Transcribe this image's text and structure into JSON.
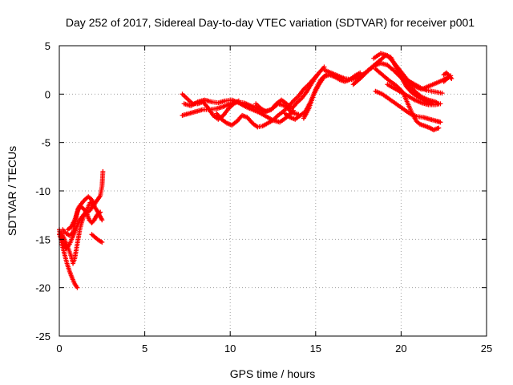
{
  "chart_data": {
    "type": "scatter",
    "title": "Day 252 of 2017, Sidereal Day-to-day VTEC variation (SDTVAR) for receiver p001",
    "xlabel": "GPS time / hours",
    "ylabel": "SDTVAR / TECUs",
    "xlim": [
      0,
      25
    ],
    "ylim": [
      -25,
      5
    ],
    "xticks": [
      0,
      5,
      10,
      15,
      20,
      25
    ],
    "yticks": [
      5,
      0,
      -5,
      -10,
      -15,
      -20,
      -25
    ],
    "xtick_labels": [
      "0",
      "5",
      "10",
      "15",
      "20",
      "25"
    ],
    "ytick_labels": [
      "5",
      "0",
      "-5",
      "-10",
      "-15",
      "-20",
      "-25"
    ],
    "grid": true,
    "marker": "+",
    "series": [
      {
        "name": "SDTVAR",
        "color": "#ff0000",
        "traces": [
          [
            [
              0.0,
              -14.0
            ],
            [
              0.15,
              -15.5
            ],
            [
              0.3,
              -16.5
            ],
            [
              0.45,
              -17.5
            ],
            [
              0.6,
              -18.3
            ],
            [
              0.75,
              -19.0
            ],
            [
              0.9,
              -19.6
            ],
            [
              1.05,
              -20.0
            ]
          ],
          [
            [
              0.0,
              -14.5
            ],
            [
              0.2,
              -15.3
            ],
            [
              0.4,
              -16.0
            ],
            [
              0.6,
              -15.5
            ],
            [
              0.8,
              -14.7
            ],
            [
              1.0,
              -13.8
            ],
            [
              1.2,
              -13.0
            ],
            [
              1.4,
              -12.5
            ],
            [
              1.6,
              -12.3
            ],
            [
              1.8,
              -12.0
            ],
            [
              2.0,
              -11.5
            ],
            [
              2.2,
              -11.0
            ],
            [
              2.4,
              -10.5
            ],
            [
              2.5,
              -9.5
            ],
            [
              2.55,
              -8.0
            ]
          ],
          [
            [
              0.1,
              -14.3
            ],
            [
              0.3,
              -15.0
            ],
            [
              0.5,
              -15.8
            ],
            [
              0.7,
              -16.8
            ],
            [
              0.8,
              -17.5
            ],
            [
              0.9,
              -17.0
            ],
            [
              1.0,
              -16.0
            ],
            [
              1.1,
              -15.0
            ],
            [
              1.2,
              -14.0
            ],
            [
              1.3,
              -13.3
            ],
            [
              1.45,
              -12.5
            ],
            [
              1.6,
              -12.0
            ],
            [
              1.8,
              -11.2
            ],
            [
              2.0,
              -11.5
            ],
            [
              2.2,
              -12.0
            ],
            [
              2.35,
              -12.5
            ],
            [
              2.5,
              -13.0
            ]
          ],
          [
            [
              0.2,
              -14.0
            ],
            [
              0.4,
              -14.4
            ],
            [
              0.6,
              -14.6
            ],
            [
              0.8,
              -14.3
            ],
            [
              0.9,
              -13.5
            ],
            [
              1.0,
              -12.6
            ],
            [
              1.1,
              -11.8
            ],
            [
              1.3,
              -11.3
            ],
            [
              1.5,
              -10.9
            ],
            [
              1.7,
              -10.6
            ],
            [
              1.9,
              -10.9
            ],
            [
              2.05,
              -11.5
            ]
          ],
          [
            [
              0.5,
              -14.0
            ],
            [
              0.7,
              -13.7
            ],
            [
              0.9,
              -13.0
            ],
            [
              1.05,
              -12.2
            ],
            [
              1.2,
              -11.6
            ],
            [
              1.4,
              -11.8
            ],
            [
              1.6,
              -12.3
            ],
            [
              1.75,
              -13.0
            ],
            [
              1.9,
              -13.3
            ],
            [
              2.05,
              -13.0
            ],
            [
              2.2,
              -12.5
            ],
            [
              2.4,
              -12.2
            ]
          ],
          [
            [
              1.9,
              -14.5
            ],
            [
              2.1,
              -14.8
            ],
            [
              2.3,
              -15.1
            ],
            [
              2.5,
              -15.3
            ]
          ],
          [
            [
              7.2,
              0.0
            ],
            [
              7.5,
              -0.5
            ],
            [
              7.8,
              -1.0
            ],
            [
              8.1,
              -1.0
            ],
            [
              8.4,
              -0.8
            ],
            [
              8.7,
              -1.4
            ],
            [
              9.0,
              -2.2
            ],
            [
              9.3,
              -2.6
            ],
            [
              9.6,
              -2.2
            ],
            [
              9.9,
              -1.5
            ],
            [
              10.2,
              -1.0
            ],
            [
              10.5,
              -0.7
            ]
          ],
          [
            [
              7.2,
              -2.2
            ],
            [
              7.6,
              -2.0
            ],
            [
              8.0,
              -1.8
            ],
            [
              8.4,
              -1.6
            ],
            [
              8.8,
              -1.6
            ],
            [
              9.2,
              -1.5
            ],
            [
              9.6,
              -1.3
            ],
            [
              10.0,
              -1.0
            ],
            [
              10.4,
              -0.8
            ],
            [
              10.8,
              -0.9
            ],
            [
              11.2,
              -1.2
            ],
            [
              11.6,
              -1.5
            ],
            [
              12.0,
              -1.8
            ],
            [
              12.4,
              -1.6
            ],
            [
              12.8,
              -1.0
            ],
            [
              13.2,
              -1.2
            ],
            [
              13.6,
              -1.9
            ],
            [
              14.0,
              -2.1
            ]
          ],
          [
            [
              7.3,
              -1.0
            ],
            [
              7.7,
              -1.2
            ],
            [
              8.1,
              -0.8
            ],
            [
              8.5,
              -0.6
            ],
            [
              8.9,
              -0.8
            ],
            [
              9.3,
              -0.9
            ],
            [
              9.7,
              -0.7
            ],
            [
              10.1,
              -0.6
            ],
            [
              10.5,
              -0.9
            ],
            [
              10.9,
              -1.3
            ],
            [
              11.3,
              -1.6
            ],
            [
              11.7,
              -1.9
            ],
            [
              12.1,
              -2.3
            ],
            [
              12.5,
              -2.7
            ],
            [
              12.9,
              -2.9
            ],
            [
              13.3,
              -2.4
            ],
            [
              13.7,
              -1.7
            ]
          ],
          [
            [
              9.2,
              -2.0
            ],
            [
              9.5,
              -2.6
            ],
            [
              9.8,
              -3.0
            ],
            [
              10.1,
              -3.2
            ],
            [
              10.4,
              -2.8
            ],
            [
              10.7,
              -2.2
            ],
            [
              11.0,
              -2.4
            ],
            [
              11.3,
              -3.0
            ],
            [
              11.6,
              -3.4
            ],
            [
              11.9,
              -3.3
            ],
            [
              12.2,
              -3.0
            ],
            [
              12.5,
              -2.7
            ],
            [
              12.8,
              -2.2
            ],
            [
              13.1,
              -1.8
            ],
            [
              13.4,
              -1.3
            ],
            [
              13.7,
              -0.7
            ],
            [
              14.0,
              -0.2
            ],
            [
              14.3,
              0.5
            ],
            [
              14.6,
              1.0
            ],
            [
              14.9,
              1.6
            ],
            [
              15.2,
              2.2
            ],
            [
              15.5,
              2.8
            ]
          ],
          [
            [
              11.5,
              -1.0
            ],
            [
              11.8,
              -1.5
            ],
            [
              12.1,
              -1.8
            ],
            [
              12.4,
              -1.6
            ],
            [
              12.7,
              -1.0
            ],
            [
              13.0,
              -0.6
            ],
            [
              13.3,
              -1.0
            ],
            [
              13.6,
              -1.5
            ],
            [
              13.9,
              -0.9
            ],
            [
              14.2,
              -0.4
            ],
            [
              14.5,
              0.3
            ],
            [
              14.8,
              1.2
            ],
            [
              15.1,
              2.0
            ]
          ],
          [
            [
              13.2,
              -2.0
            ],
            [
              13.5,
              -2.4
            ],
            [
              13.8,
              -2.6
            ],
            [
              14.1,
              -2.2
            ],
            [
              14.4,
              -1.8
            ],
            [
              14.7,
              -0.8
            ],
            [
              15.0,
              0.5
            ],
            [
              15.3,
              1.5
            ],
            [
              15.6,
              2.0
            ]
          ],
          [
            [
              14.3,
              -2.5
            ],
            [
              14.6,
              -1.5
            ],
            [
              14.9,
              0.0
            ],
            [
              15.2,
              1.0
            ],
            [
              15.5,
              1.8
            ],
            [
              15.8,
              2.0
            ],
            [
              16.1,
              1.8
            ],
            [
              16.4,
              1.5
            ],
            [
              16.7,
              1.3
            ],
            [
              17.0,
              1.5
            ],
            [
              17.3,
              1.9
            ],
            [
              17.6,
              2.2
            ]
          ],
          [
            [
              15.5,
              2.5
            ],
            [
              15.9,
              2.2
            ],
            [
              16.3,
              1.9
            ],
            [
              16.7,
              1.6
            ],
            [
              17.1,
              1.5
            ],
            [
              17.5,
              1.7
            ],
            [
              17.9,
              2.2
            ],
            [
              18.3,
              2.8
            ],
            [
              18.7,
              3.4
            ],
            [
              19.1,
              4.0
            ],
            [
              19.4,
              3.8
            ],
            [
              19.7,
              2.8
            ],
            [
              20.0,
              1.8
            ],
            [
              20.3,
              0.8
            ],
            [
              20.6,
              0.2
            ],
            [
              20.9,
              -0.2
            ],
            [
              21.2,
              -0.5
            ],
            [
              21.5,
              -0.8
            ],
            [
              21.8,
              -1.0
            ]
          ],
          [
            [
              17.2,
              1.0
            ],
            [
              17.6,
              1.6
            ],
            [
              18.0,
              2.3
            ],
            [
              18.4,
              2.9
            ],
            [
              18.8,
              3.2
            ],
            [
              19.2,
              3.0
            ],
            [
              19.6,
              2.4
            ],
            [
              20.0,
              1.7
            ],
            [
              20.4,
              1.0
            ],
            [
              20.8,
              0.3
            ],
            [
              21.2,
              -0.3
            ],
            [
              21.6,
              -0.6
            ],
            [
              22.0,
              -0.8
            ],
            [
              22.2,
              -1.0
            ]
          ],
          [
            [
              18.4,
              3.7
            ],
            [
              18.8,
              4.2
            ],
            [
              19.2,
              4.0
            ],
            [
              19.6,
              3.2
            ],
            [
              20.0,
              2.3
            ],
            [
              20.4,
              1.4
            ],
            [
              20.8,
              0.8
            ],
            [
              21.2,
              0.5
            ],
            [
              21.6,
              0.8
            ],
            [
              22.0,
              1.1
            ],
            [
              22.4,
              1.4
            ],
            [
              22.7,
              1.7
            ]
          ],
          [
            [
              18.5,
              0.3
            ],
            [
              18.9,
              0.0
            ],
            [
              19.3,
              -0.5
            ],
            [
              19.7,
              -1.0
            ],
            [
              20.1,
              -1.5
            ],
            [
              20.5,
              -2.0
            ],
            [
              20.9,
              -2.3
            ],
            [
              21.3,
              -2.4
            ],
            [
              21.7,
              -2.6
            ],
            [
              22.1,
              -2.8
            ],
            [
              22.3,
              -2.9
            ]
          ],
          [
            [
              18.5,
              2.6
            ],
            [
              18.9,
              2.0
            ],
            [
              19.3,
              1.4
            ],
            [
              19.7,
              0.9
            ],
            [
              20.1,
              0.2
            ],
            [
              20.3,
              -0.6
            ],
            [
              20.5,
              -1.4
            ],
            [
              20.7,
              -2.2
            ],
            [
              20.9,
              -2.8
            ],
            [
              21.1,
              -3.1
            ],
            [
              21.4,
              -3.3
            ],
            [
              21.7,
              -3.5
            ],
            [
              21.9,
              -3.7
            ],
            [
              22.2,
              -3.5
            ]
          ],
          [
            [
              19.2,
              1.0
            ],
            [
              19.6,
              0.6
            ],
            [
              20.0,
              0.2
            ],
            [
              20.4,
              -0.2
            ],
            [
              20.8,
              -0.6
            ],
            [
              21.2,
              -0.9
            ],
            [
              21.6,
              -1.1
            ],
            [
              22.0,
              -1.1
            ],
            [
              22.3,
              -1.0
            ]
          ],
          [
            [
              20.3,
              1.5
            ],
            [
              20.6,
              1.2
            ],
            [
              20.9,
              0.9
            ],
            [
              21.2,
              0.6
            ],
            [
              21.5,
              0.4
            ],
            [
              21.8,
              0.3
            ],
            [
              22.1,
              0.2
            ],
            [
              22.4,
              0.1
            ]
          ],
          [
            [
              22.5,
              2.0
            ],
            [
              22.65,
              2.2
            ],
            [
              22.8,
              1.9
            ],
            [
              22.95,
              1.6
            ]
          ],
          [
            [
              22.5,
              1.3
            ],
            [
              22.7,
              1.6
            ],
            [
              22.9,
              1.9
            ]
          ]
        ]
      }
    ]
  }
}
